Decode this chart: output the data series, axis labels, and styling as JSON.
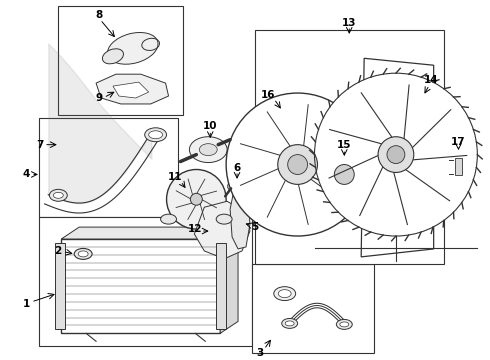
{
  "background_color": "#ffffff",
  "line_color": "#333333",
  "fig_width": 4.9,
  "fig_height": 3.6,
  "dpi": 100,
  "font_size": 7.5
}
